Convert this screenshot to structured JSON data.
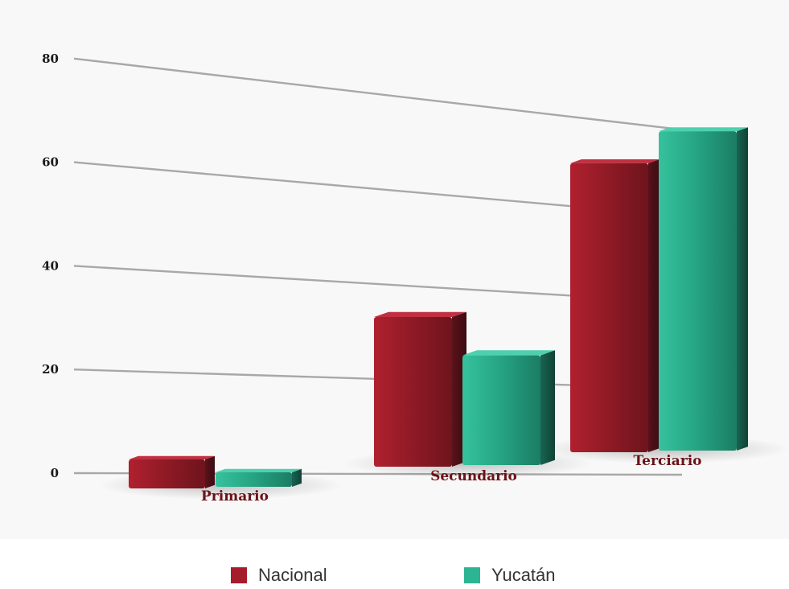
{
  "colors": {
    "nacional": "#a51d2b",
    "nacional_dark": "#4e1117",
    "yucatan": "#2cb592",
    "yucatan_dark": "#134f40",
    "gridline": "#a8a8a8",
    "category_text": "#6b1217"
  },
  "chart_data": {
    "type": "bar",
    "title": "",
    "xlabel": "",
    "ylabel": "",
    "categories": [
      "Primario",
      "Secundario",
      "Terciario"
    ],
    "series": [
      {
        "name": "Nacional",
        "values": [
          6,
          30,
          57
        ]
      },
      {
        "name": "Yucatán",
        "values": [
          3,
          22,
          63
        ]
      }
    ],
    "ylim": [
      0,
      80
    ],
    "yticks": [
      "0",
      "20",
      "40",
      "60",
      "80"
    ],
    "grid": true,
    "legend_position": "bottom"
  },
  "legend": {
    "items": [
      "Nacional",
      "Yucatán"
    ]
  }
}
